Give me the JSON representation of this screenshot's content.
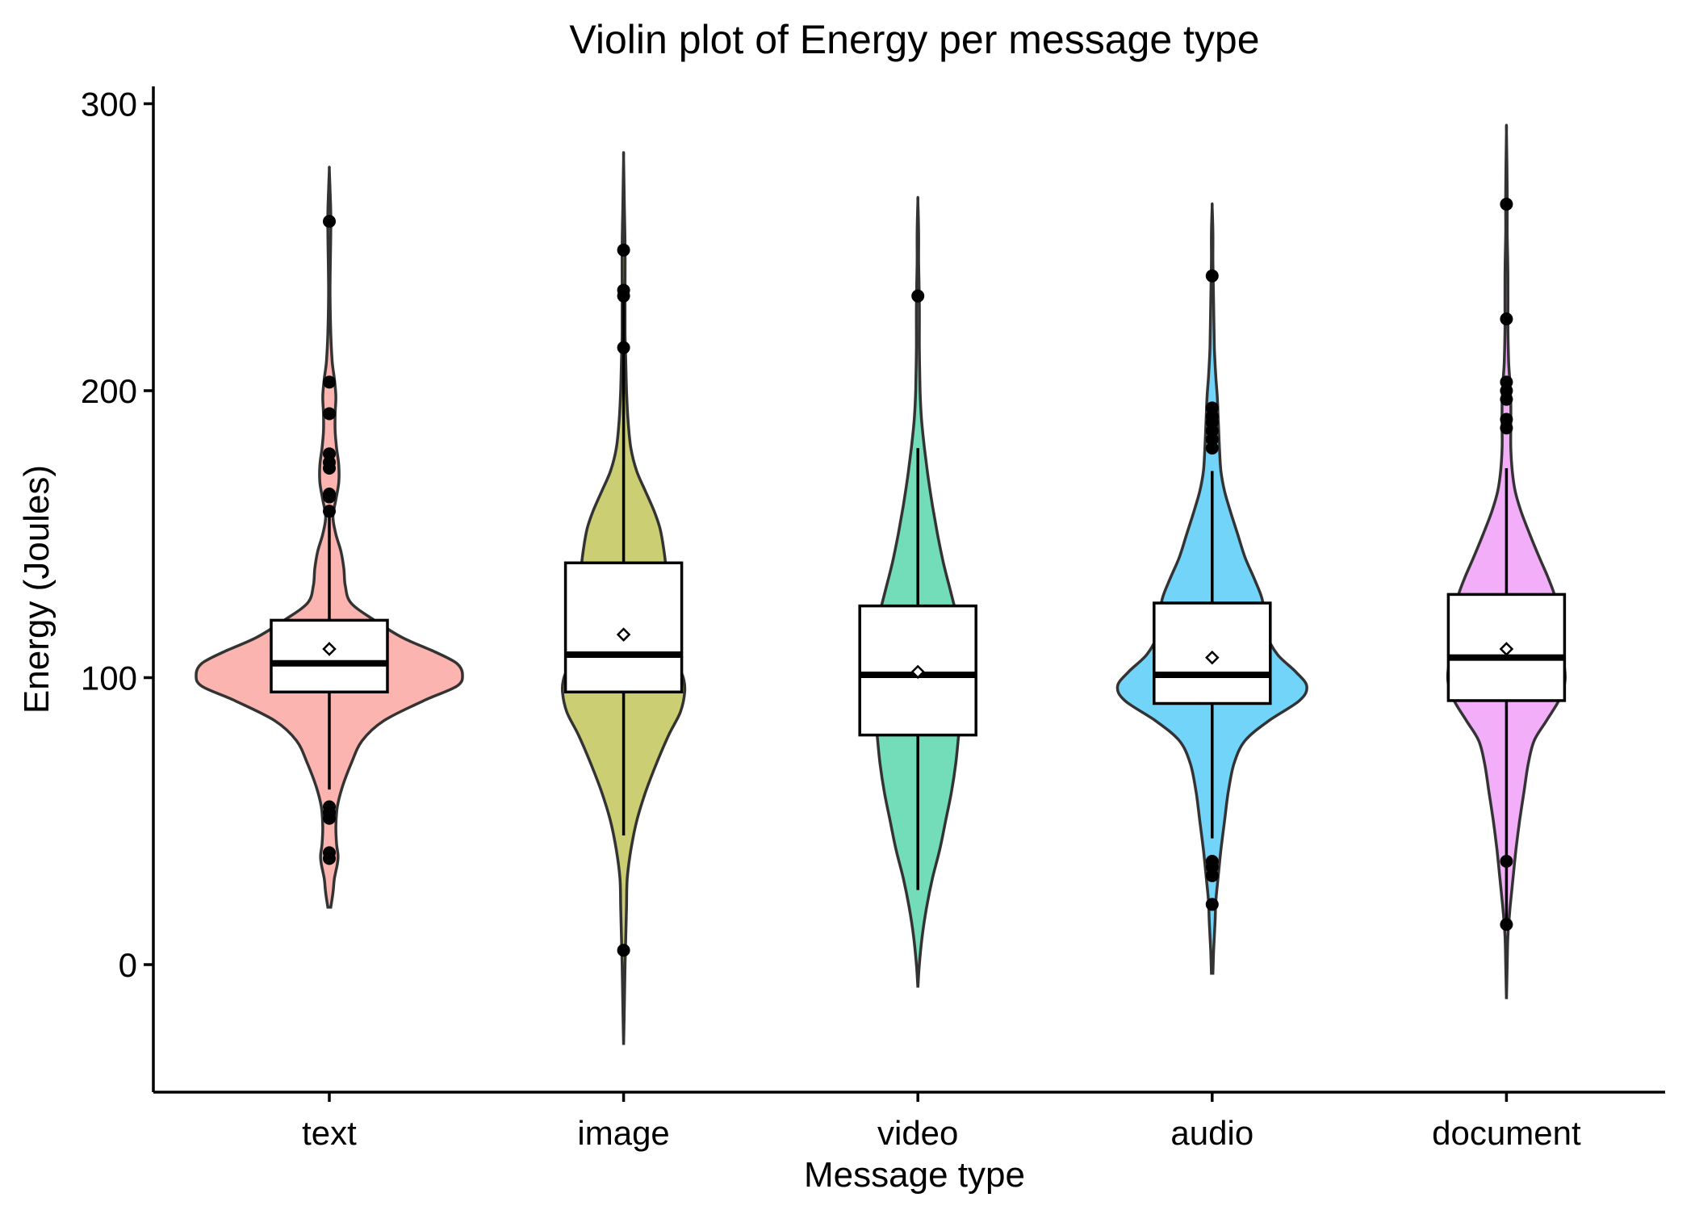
{
  "chart_data": {
    "type": "violin",
    "title": "Violin plot of Energy per message type",
    "xlabel": "Message type",
    "ylabel": "Energy (Joules)",
    "ylim": [
      -45,
      307
    ],
    "yticks": [
      0,
      100,
      200,
      300
    ],
    "legend": "none",
    "grid": false,
    "categories": [
      "text",
      "image",
      "video",
      "audio",
      "document"
    ],
    "series": [
      {
        "category": "text",
        "color": "#F8766D",
        "box": {
          "q1": 95,
          "median": 105,
          "q3": 120,
          "whisker_low": 61,
          "whisker_high": 157
        },
        "mean": 110,
        "range": [
          20,
          277
        ],
        "outliers": [
          259,
          203,
          192,
          178,
          175,
          173,
          164,
          163,
          158,
          55,
          53,
          51,
          39,
          37
        ],
        "density": [
          [
            20,
            2
          ],
          [
            25,
            5
          ],
          [
            30,
            7
          ],
          [
            35,
            11
          ],
          [
            38,
            12
          ],
          [
            42,
            10
          ],
          [
            48,
            9
          ],
          [
            55,
            11
          ],
          [
            62,
            18
          ],
          [
            70,
            30
          ],
          [
            78,
            45
          ],
          [
            85,
            75
          ],
          [
            92,
            130
          ],
          [
            97,
            175
          ],
          [
            101,
            183
          ],
          [
            105,
            175
          ],
          [
            109,
            145
          ],
          [
            114,
            100
          ],
          [
            120,
            62
          ],
          [
            126,
            30
          ],
          [
            132,
            22
          ],
          [
            138,
            20
          ],
          [
            144,
            16
          ],
          [
            150,
            9
          ],
          [
            156,
            5
          ],
          [
            162,
            9
          ],
          [
            168,
            13
          ],
          [
            174,
            13
          ],
          [
            180,
            10
          ],
          [
            186,
            8
          ],
          [
            192,
            8
          ],
          [
            198,
            9
          ],
          [
            204,
            7
          ],
          [
            210,
            4
          ],
          [
            220,
            2
          ],
          [
            235,
            1
          ],
          [
            255,
            2
          ],
          [
            262,
            2
          ],
          [
            270,
            1
          ],
          [
            277,
            0
          ]
        ]
      },
      {
        "category": "image",
        "color": "#A3A500",
        "box": {
          "q1": 95,
          "median": 108,
          "q3": 140,
          "whisker_low": 45,
          "whisker_high": 235
        },
        "mean": 115,
        "range": [
          -28,
          281
        ],
        "outliers": [
          249,
          235,
          233,
          215,
          5
        ],
        "density": [
          [
            -28,
            0
          ],
          [
            -15,
            1
          ],
          [
            0,
            2
          ],
          [
            10,
            3
          ],
          [
            20,
            4
          ],
          [
            30,
            5
          ],
          [
            40,
            10
          ],
          [
            50,
            18
          ],
          [
            60,
            30
          ],
          [
            70,
            45
          ],
          [
            80,
            62
          ],
          [
            88,
            78
          ],
          [
            95,
            84
          ],
          [
            100,
            82
          ],
          [
            106,
            72
          ],
          [
            113,
            62
          ],
          [
            120,
            55
          ],
          [
            130,
            56
          ],
          [
            138,
            58
          ],
          [
            145,
            55
          ],
          [
            152,
            50
          ],
          [
            158,
            42
          ],
          [
            165,
            30
          ],
          [
            172,
            18
          ],
          [
            180,
            10
          ],
          [
            190,
            6
          ],
          [
            200,
            4
          ],
          [
            210,
            3
          ],
          [
            220,
            2
          ],
          [
            235,
            2
          ],
          [
            250,
            2
          ],
          [
            265,
            1
          ],
          [
            281,
            0
          ]
        ]
      },
      {
        "category": "video",
        "color": "#00BF7D",
        "box": {
          "q1": 80,
          "median": 101,
          "q3": 125,
          "whisker_low": 26,
          "whisker_high": 180
        },
        "mean": 102,
        "range": [
          -8,
          266
        ],
        "outliers": [
          233
        ],
        "density": [
          [
            -8,
            0
          ],
          [
            0,
            2
          ],
          [
            10,
            6
          ],
          [
            20,
            12
          ],
          [
            30,
            20
          ],
          [
            40,
            30
          ],
          [
            50,
            38
          ],
          [
            60,
            46
          ],
          [
            70,
            52
          ],
          [
            80,
            56
          ],
          [
            90,
            60
          ],
          [
            97,
            64
          ],
          [
            103,
            68
          ],
          [
            110,
            64
          ],
          [
            120,
            55
          ],
          [
            130,
            45
          ],
          [
            140,
            35
          ],
          [
            150,
            27
          ],
          [
            160,
            20
          ],
          [
            170,
            14
          ],
          [
            180,
            9
          ],
          [
            190,
            5
          ],
          [
            200,
            3
          ],
          [
            215,
            2
          ],
          [
            230,
            2
          ],
          [
            245,
            1
          ],
          [
            255,
            1
          ],
          [
            266,
            0
          ]
        ]
      },
      {
        "category": "audio",
        "color": "#00B0F6",
        "box": {
          "q1": 91,
          "median": 101,
          "q3": 126,
          "whisker_low": 44,
          "whisker_high": 172
        },
        "mean": 107,
        "range": [
          -3,
          264
        ],
        "outliers": [
          240,
          194,
          191,
          189,
          186,
          183,
          180,
          36,
          34,
          31,
          21
        ],
        "density": [
          [
            -3,
            1
          ],
          [
            5,
            2
          ],
          [
            15,
            4
          ],
          [
            22,
            5
          ],
          [
            30,
            8
          ],
          [
            40,
            12
          ],
          [
            50,
            17
          ],
          [
            60,
            22
          ],
          [
            70,
            30
          ],
          [
            78,
            45
          ],
          [
            85,
            78
          ],
          [
            92,
            120
          ],
          [
            97,
            130
          ],
          [
            102,
            115
          ],
          [
            108,
            90
          ],
          [
            115,
            75
          ],
          [
            122,
            72
          ],
          [
            128,
            68
          ],
          [
            135,
            57
          ],
          [
            142,
            45
          ],
          [
            150,
            35
          ],
          [
            158,
            25
          ],
          [
            165,
            17
          ],
          [
            172,
            12
          ],
          [
            180,
            10
          ],
          [
            186,
            9
          ],
          [
            192,
            8
          ],
          [
            198,
            7
          ],
          [
            205,
            5
          ],
          [
            215,
            3
          ],
          [
            230,
            2
          ],
          [
            245,
            1
          ],
          [
            255,
            1
          ],
          [
            264,
            0
          ]
        ]
      },
      {
        "category": "document",
        "color": "#E76BF3",
        "box": {
          "q1": 92,
          "median": 107,
          "q3": 129,
          "whisker_low": 14,
          "whisker_high": 173
        },
        "mean": 110,
        "range": [
          -12,
          290
        ],
        "outliers": [
          265,
          225,
          203,
          200,
          197,
          190,
          187,
          36,
          14
        ],
        "density": [
          [
            -12,
            0
          ],
          [
            0,
            1
          ],
          [
            10,
            2
          ],
          [
            20,
            5
          ],
          [
            30,
            9
          ],
          [
            40,
            13
          ],
          [
            50,
            18
          ],
          [
            60,
            24
          ],
          [
            70,
            30
          ],
          [
            78,
            38
          ],
          [
            85,
            55
          ],
          [
            92,
            72
          ],
          [
            98,
            80
          ],
          [
            103,
            80
          ],
          [
            108,
            75
          ],
          [
            115,
            70
          ],
          [
            122,
            70
          ],
          [
            128,
            67
          ],
          [
            135,
            57
          ],
          [
            142,
            45
          ],
          [
            150,
            32
          ],
          [
            158,
            20
          ],
          [
            165,
            12
          ],
          [
            172,
            8
          ],
          [
            180,
            6
          ],
          [
            188,
            6
          ],
          [
            195,
            6
          ],
          [
            202,
            5
          ],
          [
            210,
            3
          ],
          [
            222,
            2
          ],
          [
            240,
            2
          ],
          [
            255,
            1
          ],
          [
            270,
            1
          ],
          [
            290,
            0
          ]
        ]
      }
    ]
  }
}
